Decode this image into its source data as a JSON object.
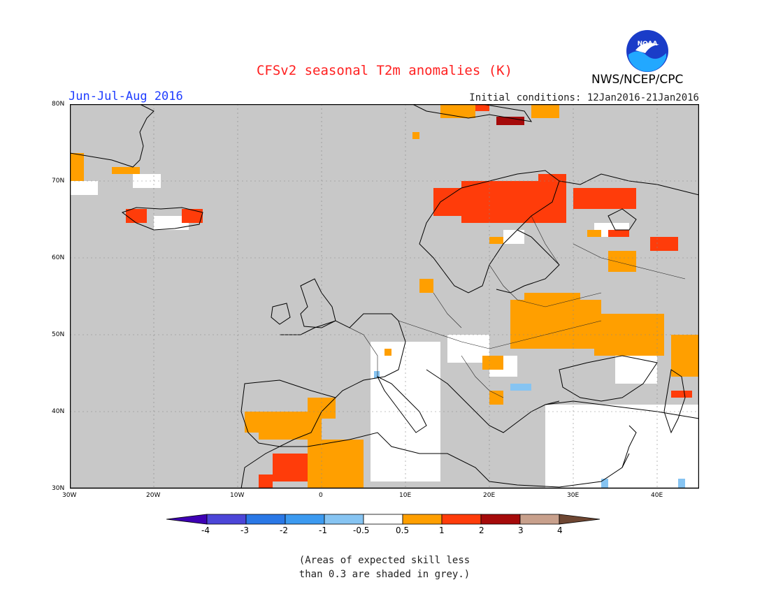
{
  "header": {
    "title": "CFSv2 seasonal T2m anomalies (K)",
    "season": "Jun-Jul-Aug 2016",
    "organization": "NWS/NCEP/CPC",
    "initial_conditions": "Initial conditions: 12Jan2016-21Jan2016",
    "logo_text": "NOAA"
  },
  "map": {
    "lat_labels": [
      "80N",
      "70N",
      "60N",
      "50N",
      "40N",
      "30N"
    ],
    "lon_labels": [
      "30W",
      "20W",
      "10W",
      "0",
      "10E",
      "20E",
      "30E",
      "40E"
    ],
    "ocean_color": "#c8c8c8",
    "extent": {
      "lon_min": -30,
      "lon_max": 45,
      "lat_min": 30,
      "lat_max": 80
    }
  },
  "colorbar": {
    "labels": [
      "-4",
      "-3",
      "-2",
      "-1",
      "-0.5",
      "0.5",
      "1",
      "2",
      "3",
      "4"
    ],
    "colors": [
      "#3e00b4",
      "#4c46d8",
      "#2a78e6",
      "#3c9af0",
      "#86c4f2",
      "#ffffff",
      "#ff9f00",
      "#ff3c0a",
      "#a50a0a",
      "#c8a08c",
      "#6e4632"
    ]
  },
  "footnote": {
    "line1": "(Areas of expected skill less",
    "line2": "than 0.3 are shaded in grey.)"
  }
}
